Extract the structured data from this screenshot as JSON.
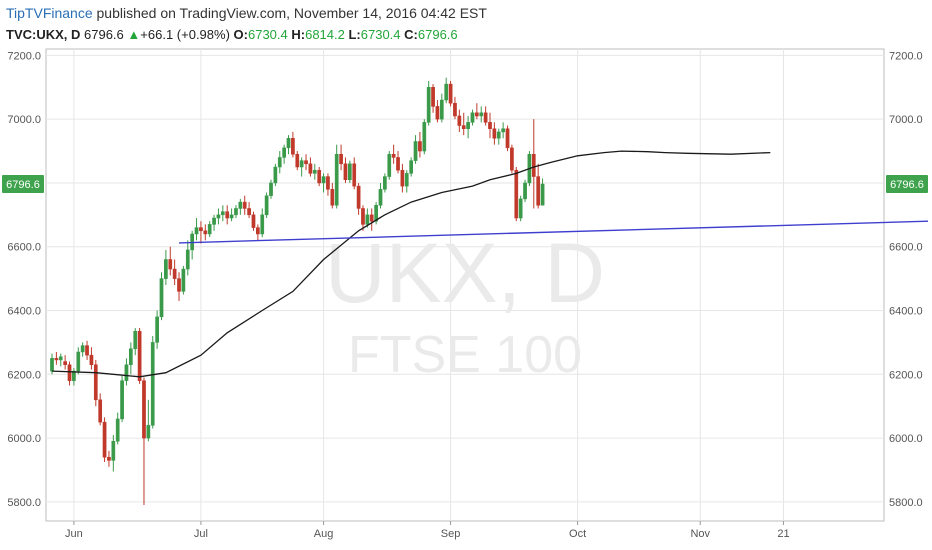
{
  "header": {
    "brand": "TipTVFinance",
    "published": " published on TradingView.com, November 14, 2016 04:42 EST",
    "symbol": "TVC:UKX, D",
    "price": "6796.6",
    "arrow": "▲",
    "change": "+66.1 (+0.98%)",
    "open_label": "O:",
    "open": "6730.4",
    "high_label": "H:",
    "high": "6814.2",
    "low_label": "L:",
    "low": "6730.4",
    "close_label": "C:",
    "close": "6796.6"
  },
  "watermark": {
    "line1": "UKX, D",
    "line2": "FTSE 100"
  },
  "colors": {
    "up": "#3a9a4a",
    "down": "#c0392b",
    "ma": "#1a1a1a",
    "trendline": "#3f3fcf",
    "grid": "#e6e6e6",
    "price_label_bg": "#3fa34d"
  },
  "chart_data": {
    "type": "candlestick",
    "title": "FTSE 100",
    "symbol": "UKX",
    "interval": "D",
    "ylim": [
      5740,
      7220
    ],
    "y_ticks": [
      "5800.0",
      "6000.0",
      "6200.0",
      "6400.0",
      "6600.0",
      "6800.0",
      "7000.0",
      "7200.0"
    ],
    "x_ticks": [
      "Jun",
      "Jul",
      "Aug",
      "Sep",
      "Oct",
      "Nov",
      "21"
    ],
    "x_tick_index": [
      5,
      34,
      62,
      91,
      120,
      148,
      167
    ],
    "last_price_label": "6796.6",
    "last_price": 6796.6,
    "grid": true,
    "series": [
      {
        "type": "ohlc",
        "x_start": "2016-05-27",
        "ohlc": [
          [
            6210,
            6265,
            6200,
            6250
          ],
          [
            6250,
            6270,
            6230,
            6245
          ],
          [
            6245,
            6265,
            6225,
            6255
          ],
          [
            6240,
            6260,
            6215,
            6230
          ],
          [
            6230,
            6240,
            6165,
            6180
          ],
          [
            6180,
            6220,
            6165,
            6210
          ],
          [
            6210,
            6285,
            6200,
            6270
          ],
          [
            6270,
            6300,
            6255,
            6290
          ],
          [
            6290,
            6305,
            6245,
            6260
          ],
          [
            6260,
            6285,
            6215,
            6230
          ],
          [
            6230,
            6245,
            6100,
            6120
          ],
          [
            6120,
            6140,
            6040,
            6050
          ],
          [
            6050,
            6065,
            5925,
            5940
          ],
          [
            5940,
            5960,
            5910,
            5930
          ],
          [
            5930,
            6010,
            5895,
            5990
          ],
          [
            5990,
            6080,
            5980,
            6060
          ],
          [
            6060,
            6195,
            6050,
            6180
          ],
          [
            6180,
            6250,
            6165,
            6230
          ],
          [
            6230,
            6300,
            6200,
            6280
          ],
          [
            6280,
            6345,
            6260,
            6335
          ],
          [
            6335,
            6345,
            6170,
            6180
          ],
          [
            6180,
            6190,
            5790,
            6000
          ],
          [
            6000,
            6120,
            5990,
            6040
          ],
          [
            6040,
            6320,
            6030,
            6300
          ],
          [
            6300,
            6400,
            6280,
            6380
          ],
          [
            6380,
            6520,
            6370,
            6500
          ],
          [
            6500,
            6590,
            6480,
            6560
          ],
          [
            6560,
            6600,
            6510,
            6530
          ],
          [
            6530,
            6560,
            6480,
            6500
          ],
          [
            6500,
            6520,
            6430,
            6460
          ],
          [
            6460,
            6540,
            6450,
            6530
          ],
          [
            6530,
            6620,
            6510,
            6590
          ],
          [
            6590,
            6650,
            6560,
            6640
          ],
          [
            6640,
            6690,
            6620,
            6660
          ],
          [
            6660,
            6680,
            6610,
            6650
          ],
          [
            6650,
            6670,
            6620,
            6640
          ],
          [
            6640,
            6680,
            6630,
            6670
          ],
          [
            6670,
            6700,
            6650,
            6690
          ],
          [
            6690,
            6720,
            6670,
            6700
          ],
          [
            6700,
            6730,
            6680,
            6710
          ],
          [
            6710,
            6730,
            6670,
            6690
          ],
          [
            6690,
            6720,
            6680,
            6700
          ],
          [
            6700,
            6730,
            6690,
            6720
          ],
          [
            6720,
            6750,
            6700,
            6740
          ],
          [
            6740,
            6760,
            6700,
            6720
          ],
          [
            6720,
            6740,
            6690,
            6700
          ],
          [
            6700,
            6710,
            6650,
            6660
          ],
          [
            6660,
            6670,
            6620,
            6640
          ],
          [
            6640,
            6720,
            6630,
            6700
          ],
          [
            6700,
            6770,
            6690,
            6760
          ],
          [
            6760,
            6810,
            6750,
            6800
          ],
          [
            6800,
            6860,
            6790,
            6850
          ],
          [
            6850,
            6900,
            6830,
            6880
          ],
          [
            6880,
            6920,
            6860,
            6910
          ],
          [
            6910,
            6950,
            6890,
            6940
          ],
          [
            6940,
            6960,
            6880,
            6890
          ],
          [
            6890,
            6900,
            6840,
            6850
          ],
          [
            6850,
            6880,
            6820,
            6870
          ],
          [
            6870,
            6890,
            6840,
            6860
          ],
          [
            6860,
            6880,
            6820,
            6830
          ],
          [
            6830,
            6860,
            6810,
            6840
          ],
          [
            6840,
            6850,
            6790,
            6800
          ],
          [
            6800,
            6830,
            6770,
            6820
          ],
          [
            6820,
            6830,
            6760,
            6780
          ],
          [
            6780,
            6800,
            6720,
            6730
          ],
          [
            6730,
            6920,
            6720,
            6890
          ],
          [
            6890,
            6920,
            6840,
            6860
          ],
          [
            6860,
            6880,
            6800,
            6810
          ],
          [
            6810,
            6870,
            6800,
            6860
          ],
          [
            6860,
            6880,
            6780,
            6790
          ],
          [
            6790,
            6800,
            6700,
            6720
          ],
          [
            6720,
            6730,
            6650,
            6670
          ],
          [
            6670,
            6720,
            6660,
            6700
          ],
          [
            6700,
            6720,
            6650,
            6680
          ],
          [
            6680,
            6740,
            6670,
            6730
          ],
          [
            6730,
            6800,
            6720,
            6780
          ],
          [
            6780,
            6830,
            6770,
            6820
          ],
          [
            6820,
            6900,
            6810,
            6890
          ],
          [
            6890,
            6920,
            6860,
            6880
          ],
          [
            6880,
            6900,
            6830,
            6840
          ],
          [
            6840,
            6860,
            6770,
            6790
          ],
          [
            6790,
            6840,
            6770,
            6830
          ],
          [
            6830,
            6880,
            6820,
            6870
          ],
          [
            6870,
            6950,
            6860,
            6930
          ],
          [
            6930,
            6960,
            6880,
            6900
          ],
          [
            6900,
            7000,
            6890,
            6990
          ],
          [
            6990,
            7120,
            6980,
            7100
          ],
          [
            7100,
            7110,
            7020,
            7040
          ],
          [
            7040,
            7060,
            6990,
            7000
          ],
          [
            7000,
            7080,
            6990,
            7060
          ],
          [
            7060,
            7130,
            7050,
            7110
          ],
          [
            7110,
            7120,
            7040,
            7050
          ],
          [
            7050,
            7070,
            7000,
            7010
          ],
          [
            7010,
            7030,
            6960,
            6980
          ],
          [
            6980,
            7020,
            6950,
            6970
          ],
          [
            6970,
            7010,
            6940,
            6990
          ],
          [
            6990,
            7030,
            6980,
            7020
          ],
          [
            7020,
            7050,
            7000,
            7010
          ],
          [
            7010,
            7040,
            6990,
            7020
          ],
          [
            7020,
            7040,
            6980,
            6990
          ],
          [
            6990,
            7020,
            6940,
            6970
          ],
          [
            6970,
            6990,
            6920,
            6940
          ],
          [
            6940,
            6970,
            6920,
            6960
          ],
          [
            6960,
            6990,
            6940,
            6970
          ],
          [
            6970,
            6980,
            6900,
            6910
          ],
          [
            6910,
            6920,
            6830,
            6840
          ],
          [
            6840,
            6850,
            6680,
            6690
          ],
          [
            6690,
            6760,
            6680,
            6750
          ],
          [
            6750,
            6810,
            6740,
            6800
          ],
          [
            6800,
            6900,
            6790,
            6890
          ],
          [
            6890,
            7000,
            6720,
            6820
          ],
          [
            6820,
            6860,
            6720,
            6730
          ],
          [
            6730,
            6814.2,
            6730.4,
            6796.6
          ]
        ]
      },
      {
        "name": "",
        "type": "line",
        "anchors": [
          [
            0,
            6210
          ],
          [
            10,
            6205
          ],
          [
            20,
            6192
          ],
          [
            26,
            6205
          ],
          [
            34,
            6260
          ],
          [
            40,
            6330
          ],
          [
            48,
            6400
          ],
          [
            55,
            6460
          ],
          [
            62,
            6560
          ],
          [
            70,
            6650
          ],
          [
            76,
            6700
          ],
          [
            82,
            6740
          ],
          [
            89,
            6770
          ],
          [
            96,
            6790
          ],
          [
            100,
            6810
          ],
          [
            106,
            6830
          ],
          [
            110,
            6850
          ],
          [
            114,
            6865
          ],
          [
            120,
            6885
          ],
          [
            126,
            6895
          ],
          [
            130,
            6900
          ],
          [
            136,
            6898
          ],
          [
            140,
            6895
          ],
          [
            145,
            6893
          ],
          [
            155,
            6890
          ],
          [
            164,
            6895
          ]
        ]
      },
      {
        "name": "",
        "type": "trendline",
        "points": [
          [
            29,
            6612
          ],
          [
            200,
            6680
          ]
        ]
      }
    ]
  }
}
